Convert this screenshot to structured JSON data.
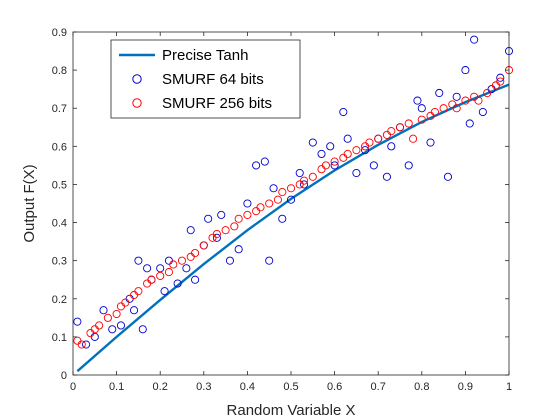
{
  "chart_data": {
    "type": "scatter",
    "title": "",
    "xlabel": "Random Variable X",
    "ylabel": "Output F(X)",
    "xlim": [
      0,
      1
    ],
    "ylim": [
      0,
      0.9
    ],
    "xticks": [
      0,
      0.1,
      0.2,
      0.3,
      0.4,
      0.5,
      0.6,
      0.7,
      0.8,
      0.9,
      1
    ],
    "xtick_labels": [
      "0",
      "0.1",
      "0.2",
      "0.3",
      "0.4",
      "0.5",
      "0.6",
      "0.7",
      "0.8",
      "0.9",
      "1"
    ],
    "yticks": [
      0,
      0.1,
      0.2,
      0.3,
      0.4,
      0.5,
      0.6,
      0.7,
      0.8,
      0.9
    ],
    "ytick_labels": [
      "0",
      "0.1",
      "0.2",
      "0.3",
      "0.4",
      "0.5",
      "0.6",
      "0.7",
      "0.8",
      "0.9"
    ],
    "grid": false,
    "legend_position": "top-left",
    "series": [
      {
        "name": "Precise Tanh",
        "kind": "line",
        "color": "#0072BD",
        "x": [
          0.01,
          0.1,
          0.2,
          0.3,
          0.4,
          0.5,
          0.6,
          0.7,
          0.8,
          0.9,
          1.0
        ],
        "y": [
          0.01,
          0.1,
          0.197,
          0.291,
          0.38,
          0.462,
          0.537,
          0.604,
          0.664,
          0.716,
          0.762
        ]
      },
      {
        "name": "SMURF 64 bits",
        "kind": "scatter",
        "color": "#0000CC",
        "x": [
          0.01,
          0.03,
          0.05,
          0.07,
          0.09,
          0.11,
          0.13,
          0.14,
          0.15,
          0.16,
          0.17,
          0.18,
          0.2,
          0.21,
          0.22,
          0.24,
          0.26,
          0.27,
          0.28,
          0.3,
          0.31,
          0.33,
          0.34,
          0.36,
          0.38,
          0.4,
          0.42,
          0.44,
          0.45,
          0.46,
          0.48,
          0.5,
          0.52,
          0.53,
          0.55,
          0.57,
          0.59,
          0.6,
          0.62,
          0.63,
          0.65,
          0.67,
          0.69,
          0.7,
          0.72,
          0.73,
          0.75,
          0.77,
          0.79,
          0.8,
          0.82,
          0.84,
          0.86,
          0.88,
          0.9,
          0.91,
          0.92,
          0.94,
          0.96,
          0.98,
          1.0
        ],
        "y": [
          0.14,
          0.08,
          0.1,
          0.17,
          0.12,
          0.13,
          0.2,
          0.17,
          0.3,
          0.12,
          0.28,
          0.25,
          0.28,
          0.22,
          0.3,
          0.24,
          0.28,
          0.38,
          0.25,
          0.34,
          0.41,
          0.36,
          0.42,
          0.3,
          0.33,
          0.45,
          0.55,
          0.56,
          0.3,
          0.49,
          0.41,
          0.46,
          0.53,
          0.5,
          0.61,
          0.58,
          0.6,
          0.55,
          0.69,
          0.62,
          0.53,
          0.59,
          0.55,
          0.62,
          0.52,
          0.6,
          0.65,
          0.55,
          0.72,
          0.7,
          0.61,
          0.74,
          0.52,
          0.73,
          0.8,
          0.66,
          0.88,
          0.69,
          0.75,
          0.78,
          0.85
        ]
      },
      {
        "name": "SMURF 256 bits",
        "kind": "scatter",
        "color": "#FF0000",
        "x": [
          0.01,
          0.02,
          0.04,
          0.05,
          0.06,
          0.08,
          0.1,
          0.11,
          0.12,
          0.14,
          0.15,
          0.17,
          0.18,
          0.2,
          0.22,
          0.23,
          0.25,
          0.27,
          0.28,
          0.3,
          0.32,
          0.33,
          0.35,
          0.37,
          0.38,
          0.4,
          0.42,
          0.43,
          0.45,
          0.47,
          0.48,
          0.5,
          0.52,
          0.53,
          0.55,
          0.57,
          0.58,
          0.6,
          0.62,
          0.63,
          0.65,
          0.67,
          0.68,
          0.7,
          0.72,
          0.73,
          0.75,
          0.77,
          0.78,
          0.8,
          0.82,
          0.83,
          0.85,
          0.87,
          0.88,
          0.9,
          0.92,
          0.93,
          0.95,
          0.97,
          0.98,
          1.0
        ],
        "y": [
          0.09,
          0.08,
          0.11,
          0.12,
          0.13,
          0.15,
          0.16,
          0.18,
          0.19,
          0.21,
          0.22,
          0.24,
          0.25,
          0.26,
          0.27,
          0.29,
          0.3,
          0.31,
          0.32,
          0.34,
          0.36,
          0.37,
          0.38,
          0.39,
          0.41,
          0.42,
          0.43,
          0.44,
          0.45,
          0.46,
          0.48,
          0.49,
          0.5,
          0.51,
          0.52,
          0.54,
          0.55,
          0.56,
          0.57,
          0.58,
          0.59,
          0.6,
          0.61,
          0.62,
          0.63,
          0.64,
          0.65,
          0.66,
          0.62,
          0.67,
          0.68,
          0.69,
          0.7,
          0.71,
          0.7,
          0.72,
          0.73,
          0.72,
          0.74,
          0.76,
          0.77,
          0.8
        ]
      }
    ]
  }
}
